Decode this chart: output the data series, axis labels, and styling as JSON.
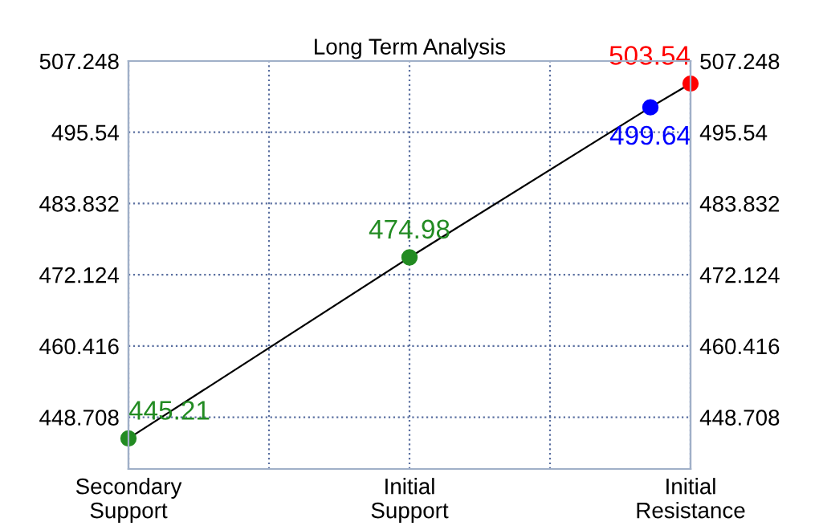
{
  "chart_data": {
    "type": "line",
    "title": "Long Term Analysis",
    "categories": [
      "Secondary\nSupport",
      null,
      null,
      null,
      null,
      null,
      null,
      null,
      null,
      null,
      null,
      null,
      null,
      null,
      "Initial\nSupport",
      null,
      null,
      null,
      null,
      null,
      null,
      null,
      null,
      null,
      null,
      null,
      null,
      null,
      "Initial\nResistance"
    ],
    "ylim": [
      440.2,
      507.248
    ],
    "yticks": [
      448.708,
      460.416,
      472.124,
      483.832,
      495.54,
      507.248
    ],
    "y2lim": [
      440.2,
      507.248
    ],
    "y2ticks": [
      448.708,
      460.416,
      472.124,
      483.832,
      495.54,
      507.248
    ],
    "grid": true,
    "series": [
      {
        "color": "#000000",
        "values": [
          445.21,
          null,
          null,
          null,
          null,
          null,
          null,
          null,
          null,
          null,
          null,
          null,
          null,
          null,
          474.98,
          null,
          null,
          null,
          null,
          null,
          null,
          null,
          null,
          null,
          null,
          null,
          499.64,
          null,
          503.54
        ]
      },
      {
        "type": "scatter",
        "values": [
          445.21,
          null,
          null,
          null,
          null,
          null,
          null,
          null,
          null,
          null,
          null,
          null,
          null,
          null,
          474.98,
          null,
          null,
          null,
          null,
          null,
          null,
          null,
          null,
          null,
          null,
          null,
          499.64,
          null,
          503.54
        ],
        "colors": [
          "#228b22",
          null,
          null,
          null,
          null,
          null,
          null,
          null,
          null,
          null,
          null,
          null,
          null,
          null,
          "#228b22",
          null,
          null,
          null,
          null,
          null,
          null,
          null,
          null,
          null,
          null,
          null,
          "#0000ff",
          null,
          "#ff0000"
        ],
        "marker": "circle",
        "value_labels": [
          "445.21",
          null,
          null,
          null,
          null,
          null,
          null,
          null,
          null,
          null,
          null,
          null,
          null,
          null,
          "474.98",
          null,
          null,
          null,
          null,
          null,
          null,
          null,
          null,
          null,
          null,
          null,
          "499.64",
          null,
          "503.54"
        ]
      }
    ]
  }
}
